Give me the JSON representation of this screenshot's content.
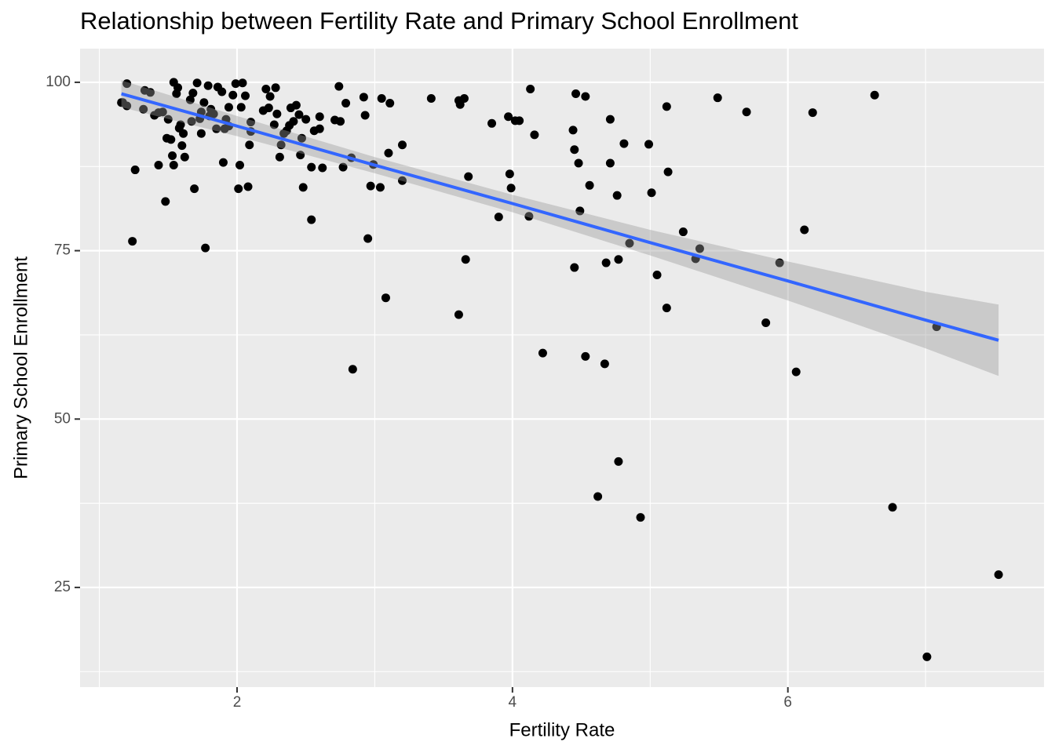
{
  "chart_data": {
    "type": "scatter",
    "title": "Relationship between Fertility Rate and Primary School Enrollment",
    "x_label": "Fertility Rate",
    "y_label": "Primary School Enrollment",
    "x": [
      1.17,
      1.2,
      1.2,
      1.24,
      1.26,
      1.32,
      1.33,
      1.37,
      1.4,
      1.43,
      1.46,
      1.48,
      1.49,
      1.52,
      1.53,
      1.54,
      1.54,
      1.56,
      1.57,
      1.58,
      1.6,
      1.61,
      1.62,
      1.66,
      1.68,
      1.69,
      1.71,
      1.73,
      1.74,
      1.76,
      1.77,
      1.79,
      1.81,
      1.83,
      1.85,
      1.86,
      1.89,
      1.9,
      1.91,
      1.94,
      1.97,
      1.99,
      2.01,
      2.02,
      2.03,
      2.04,
      2.06,
      2.08,
      2.09,
      2.1,
      2.1,
      2.19,
      2.21,
      2.23,
      2.24,
      2.27,
      2.28,
      2.29,
      2.31,
      2.32,
      2.34,
      2.36,
      2.38,
      2.39,
      2.41,
      2.43,
      2.45,
      2.46,
      2.47,
      2.48,
      2.5,
      2.54,
      2.54,
      2.56,
      2.6,
      2.6,
      2.62,
      2.71,
      2.74,
      2.75,
      2.77,
      2.79,
      2.83,
      2.84,
      2.92,
      2.93,
      2.95,
      2.97,
      2.99,
      3.04,
      3.05,
      3.08,
      3.1,
      3.11,
      3.2,
      3.2,
      3.41,
      3.61,
      3.61,
      3.62,
      3.65,
      3.66,
      3.68,
      3.85,
      3.9,
      3.97,
      3.98,
      3.99,
      4.02,
      4.05,
      4.12,
      4.13,
      4.16,
      4.22,
      4.44,
      4.45,
      4.45,
      4.46,
      4.48,
      4.49,
      4.53,
      4.53,
      4.56,
      4.62,
      4.67,
      4.68,
      4.71,
      4.71,
      4.76,
      4.77,
      4.77,
      4.81,
      4.85,
      4.93,
      4.99,
      5.01,
      5.05,
      5.12,
      5.12,
      5.13,
      5.24,
      5.33,
      5.36,
      5.49,
      5.7,
      5.84,
      5.94,
      6.06,
      6.12,
      6.18,
      6.63,
      6.76,
      7.01,
      7.08,
      7.53,
      1.16,
      1.43,
      1.5,
      1.59,
      1.67,
      1.74,
      1.8,
      1.92,
      1.94
    ],
    "y": [
      97.0,
      99.8,
      96.5,
      76.4,
      87.0,
      96.0,
      98.8,
      98.5,
      95.1,
      87.7,
      95.6,
      82.3,
      91.7,
      91.5,
      89.1,
      87.7,
      100.0,
      98.3,
      99.2,
      93.2,
      90.6,
      92.4,
      88.9,
      97.4,
      98.4,
      84.2,
      99.9,
      94.6,
      92.4,
      97.0,
      75.4,
      99.5,
      96.0,
      95.3,
      93.1,
      99.3,
      98.6,
      88.1,
      93.1,
      96.3,
      98.1,
      99.8,
      84.2,
      87.7,
      96.3,
      99.9,
      98.0,
      84.5,
      90.7,
      94.1,
      92.7,
      95.8,
      99.0,
      96.2,
      97.9,
      93.7,
      99.2,
      95.3,
      88.9,
      90.7,
      92.4,
      92.8,
      93.6,
      96.2,
      94.2,
      96.6,
      95.2,
      89.2,
      91.7,
      84.4,
      94.5,
      79.6,
      87.4,
      92.8,
      94.9,
      93.1,
      87.3,
      94.4,
      99.4,
      94.2,
      87.4,
      96.9,
      88.8,
      57.4,
      97.8,
      95.1,
      76.8,
      84.6,
      87.8,
      84.4,
      97.6,
      68.0,
      89.5,
      96.9,
      85.4,
      90.7,
      97.6,
      65.5,
      97.3,
      96.7,
      97.6,
      73.7,
      86.0,
      93.9,
      80.0,
      94.9,
      86.4,
      84.3,
      94.3,
      94.3,
      80.1,
      99.0,
      92.2,
      59.8,
      92.9,
      72.5,
      90.0,
      98.3,
      88.0,
      80.9,
      97.9,
      59.3,
      84.7,
      38.5,
      58.2,
      73.2,
      94.5,
      88.0,
      83.2,
      73.7,
      43.7,
      90.9,
      76.1,
      35.4,
      90.8,
      83.6,
      71.4,
      96.4,
      66.5,
      86.7,
      77.8,
      73.8,
      75.3,
      97.7,
      95.6,
      64.3,
      73.2,
      57.0,
      78.1,
      95.5,
      98.1,
      36.9,
      14.7,
      63.7,
      26.9,
      97.0,
      95.5,
      94.5,
      93.7,
      94.2,
      95.6,
      95.0,
      94.5,
      93.5
    ],
    "point_color": "#000000",
    "fit": {
      "x": [
        1.16,
        2,
        3,
        4,
        5,
        6,
        7,
        7.53
      ],
      "y": [
        98.3,
        93.5,
        87.7,
        82.0,
        76.2,
        70.5,
        64.7,
        61.7
      ],
      "lower": [
        96.3,
        92.0,
        86.5,
        80.7,
        74.3,
        67.6,
        60.5,
        56.4
      ],
      "upper": [
        100.3,
        95.0,
        88.9,
        83.3,
        78.1,
        73.4,
        68.9,
        67.0
      ],
      "color": "#3366ff",
      "band_color": "#999999"
    },
    "xlim": [
      0.86,
      7.86
    ],
    "ylim": [
      10.2,
      105
    ],
    "xticks": [
      2,
      4,
      6
    ],
    "yticks": [
      25,
      50,
      75,
      100
    ],
    "xminor": [
      1,
      3,
      5,
      7
    ],
    "yminor": [
      12.5,
      37.5,
      62.5,
      87.5
    ],
    "grid": true
  }
}
